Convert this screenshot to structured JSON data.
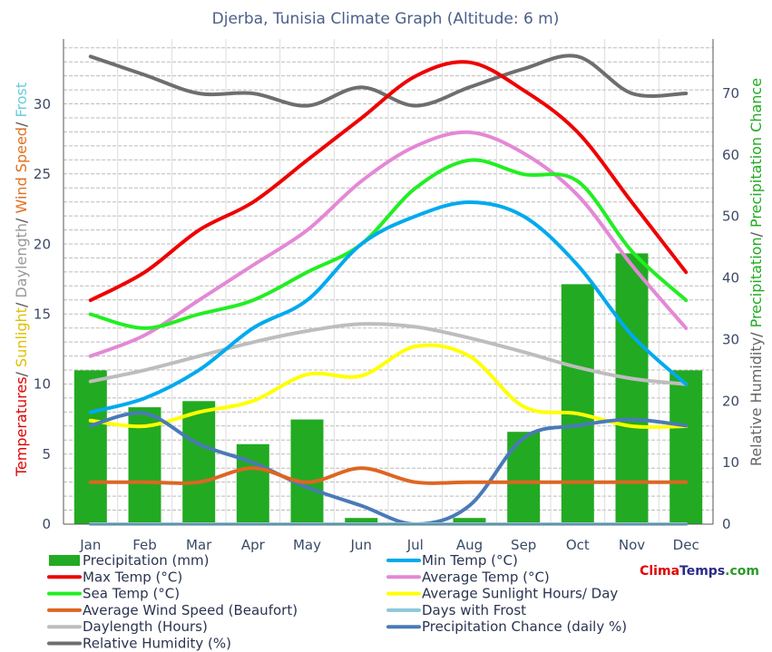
{
  "chart_data": {
    "type": "line",
    "title": "Djerba, Tunisia  Climate Graph (Altitude: 6 m)",
    "brand": {
      "part1": "Clima",
      "part2": "Temps",
      "part3": ".com",
      "colors": [
        "#e00000",
        "#2a2a88",
        "#2a9a2a"
      ]
    },
    "categories": [
      "Jan",
      "Feb",
      "Mar",
      "Apr",
      "May",
      "Jun",
      "Jul",
      "Aug",
      "Sep",
      "Oct",
      "Nov",
      "Dec"
    ],
    "y_left": {
      "ticks": [
        0,
        5,
        10,
        15,
        20,
        25,
        30
      ],
      "ylim": [
        0,
        30
      ],
      "label_parts": [
        {
          "text": "Temperatures",
          "color": "#e00000"
        },
        {
          "text": "/ ",
          "color": "#555555"
        },
        {
          "text": "Sunlight",
          "color": "#e0c000"
        },
        {
          "text": "/ ",
          "color": "#555555"
        },
        {
          "text": "Daylength",
          "color": "#999999"
        },
        {
          "text": "/ ",
          "color": "#555555"
        },
        {
          "text": "Wind Speed",
          "color": "#e07020"
        },
        {
          "text": "/ ",
          "color": "#555555"
        },
        {
          "text": "Frost",
          "color": "#66ccdd"
        }
      ]
    },
    "y_right": {
      "ticks": [
        0,
        10,
        20,
        30,
        40,
        50,
        60,
        70
      ],
      "ylim": [
        0,
        70
      ],
      "label_parts": [
        {
          "text": "Relative Humidity",
          "color": "#666666"
        },
        {
          "text": "/ ",
          "color": "#555555"
        },
        {
          "text": "Precipitation",
          "color": "#22aa22"
        },
        {
          "text": "/ ",
          "color": "#555555"
        },
        {
          "text": "Precipitation Chance",
          "color": "#22aa22"
        }
      ]
    },
    "precipitation": {
      "name": "Precipitation (mm)",
      "color": "#22aa22",
      "axis": "right",
      "values": [
        25,
        19,
        20,
        13,
        17,
        1,
        0,
        1,
        15,
        39,
        44,
        25
      ]
    },
    "series": [
      {
        "name": "Relative Humidity (%)",
        "color": "#6e6e6e",
        "axis": "right",
        "values": [
          76,
          73,
          70,
          70,
          68,
          71,
          68,
          71,
          74,
          76,
          70,
          70
        ]
      },
      {
        "name": "Daylength (Hours)",
        "color": "#bdbdbd",
        "axis": "left",
        "values": [
          10.2,
          11,
          12,
          13,
          13.8,
          14.3,
          14.1,
          13.3,
          12.3,
          11.2,
          10.4,
          10
        ]
      },
      {
        "name": "Max Temp (°C)",
        "color": "#ee0000",
        "axis": "left",
        "values": [
          16,
          18,
          21,
          23,
          26,
          29,
          32,
          33,
          31,
          28,
          23,
          18
        ]
      },
      {
        "name": "Average Temp (°C)",
        "color": "#e488d6",
        "axis": "left",
        "values": [
          12,
          13.5,
          16,
          18.5,
          21,
          24.5,
          27,
          28,
          26.5,
          23.5,
          18.5,
          14
        ]
      },
      {
        "name": "Sea Temp (°C)",
        "color": "#22ee22",
        "axis": "left",
        "values": [
          15,
          14,
          15,
          16,
          18,
          20,
          24,
          26,
          25,
          24.5,
          19.5,
          16
        ]
      },
      {
        "name": "Min Temp (°C)",
        "color": "#00aaee",
        "axis": "left",
        "values": [
          8,
          9,
          11,
          14,
          16,
          20,
          22,
          23,
          22,
          18.5,
          13.5,
          10
        ]
      },
      {
        "name": "Average Sunlight Hours/ Day",
        "color": "#ffff00",
        "axis": "left",
        "values": [
          7.4,
          7,
          8,
          8.8,
          10.7,
          10.6,
          12.7,
          12,
          8.4,
          7.9,
          7,
          7
        ]
      },
      {
        "name": "Precipitation Chance (daily %)",
        "color": "#4a7ab8",
        "axis": "right",
        "values": [
          16,
          18,
          13,
          10,
          6,
          3,
          0,
          3,
          14,
          16,
          17,
          16
        ]
      },
      {
        "name": "Average Wind Speed (Beaufort)",
        "color": "#dd6622",
        "axis": "left",
        "values": [
          3,
          3,
          3,
          4,
          3,
          4,
          3,
          3,
          3,
          3,
          3,
          3
        ]
      },
      {
        "name": "Days with Frost",
        "color": "#8ec8dc",
        "axis": "left",
        "values": [
          0,
          0,
          0,
          0,
          0,
          0,
          0,
          0,
          0,
          0,
          0,
          0
        ]
      }
    ],
    "legend": [
      {
        "name": "Precipitation (mm)",
        "color": "#22aa22",
        "kind": "box"
      },
      {
        "name": "Min Temp (°C)",
        "color": "#00aaee",
        "kind": "line"
      },
      {
        "name": "Max Temp (°C)",
        "color": "#ee0000",
        "kind": "line"
      },
      {
        "name": "Average Temp (°C)",
        "color": "#e488d6",
        "kind": "line"
      },
      {
        "name": "Sea Temp (°C)",
        "color": "#22ee22",
        "kind": "line"
      },
      {
        "name": "Average Sunlight Hours/ Day",
        "color": "#ffff00",
        "kind": "line"
      },
      {
        "name": "Average Wind Speed (Beaufort)",
        "color": "#dd6622",
        "kind": "line"
      },
      {
        "name": "Days with Frost",
        "color": "#8ec8dc",
        "kind": "line"
      },
      {
        "name": "Daylength (Hours)",
        "color": "#bdbdbd",
        "kind": "line"
      },
      {
        "name": "Precipitation Chance (daily %)",
        "color": "#4a7ab8",
        "kind": "line"
      },
      {
        "name": "Relative Humidity (%)",
        "color": "#6e6e6e",
        "kind": "line"
      }
    ],
    "grid": true
  }
}
